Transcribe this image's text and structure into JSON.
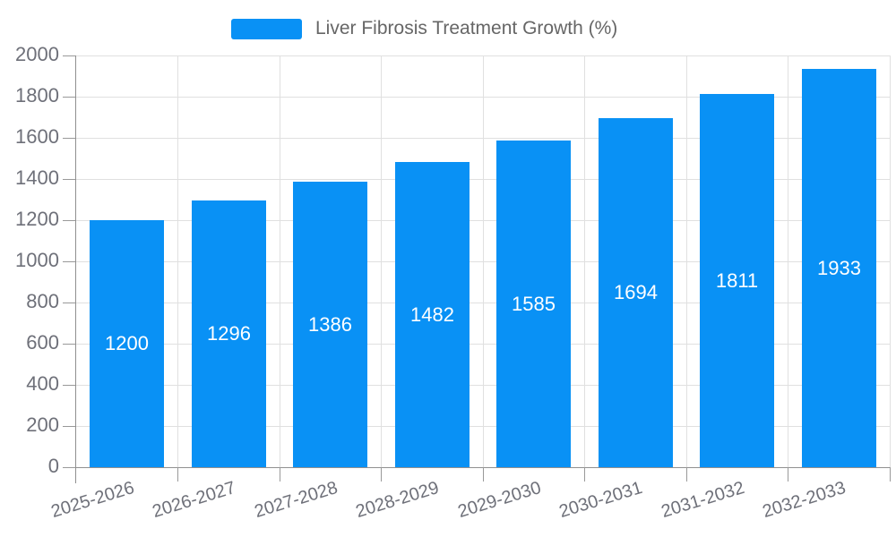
{
  "legend": {
    "label": "Liver Fibrosis Treatment Growth (%)",
    "swatch_color": "#0991f5"
  },
  "chart_data": {
    "type": "bar",
    "title": "",
    "xlabel": "",
    "ylabel": "",
    "categories": [
      "2025-2026",
      "2026-2027",
      "2027-2028",
      "2028-2029",
      "2029-2030",
      "2030-2031",
      "2031-2032",
      "2032-2033"
    ],
    "values": [
      1200,
      1296,
      1386,
      1482,
      1585,
      1694,
      1811,
      1933
    ],
    "series_name": "Liver Fibrosis Treatment Growth (%)",
    "ylim": [
      0,
      2000
    ],
    "ytick_interval": 200,
    "y_ticks": [
      "0",
      "200",
      "400",
      "600",
      "800",
      "1000",
      "1200",
      "1400",
      "1600",
      "1800",
      "2000"
    ],
    "bar_color": "#0991f5",
    "value_label_color": "#ffffff",
    "value_label_position": "inside-center",
    "grid": true,
    "grid_color": "#e0e0e0",
    "axis_color": "#909090",
    "axis_text_color": "#6e7079",
    "legend_position": "top-center",
    "x_label_rotation_deg": -17
  }
}
